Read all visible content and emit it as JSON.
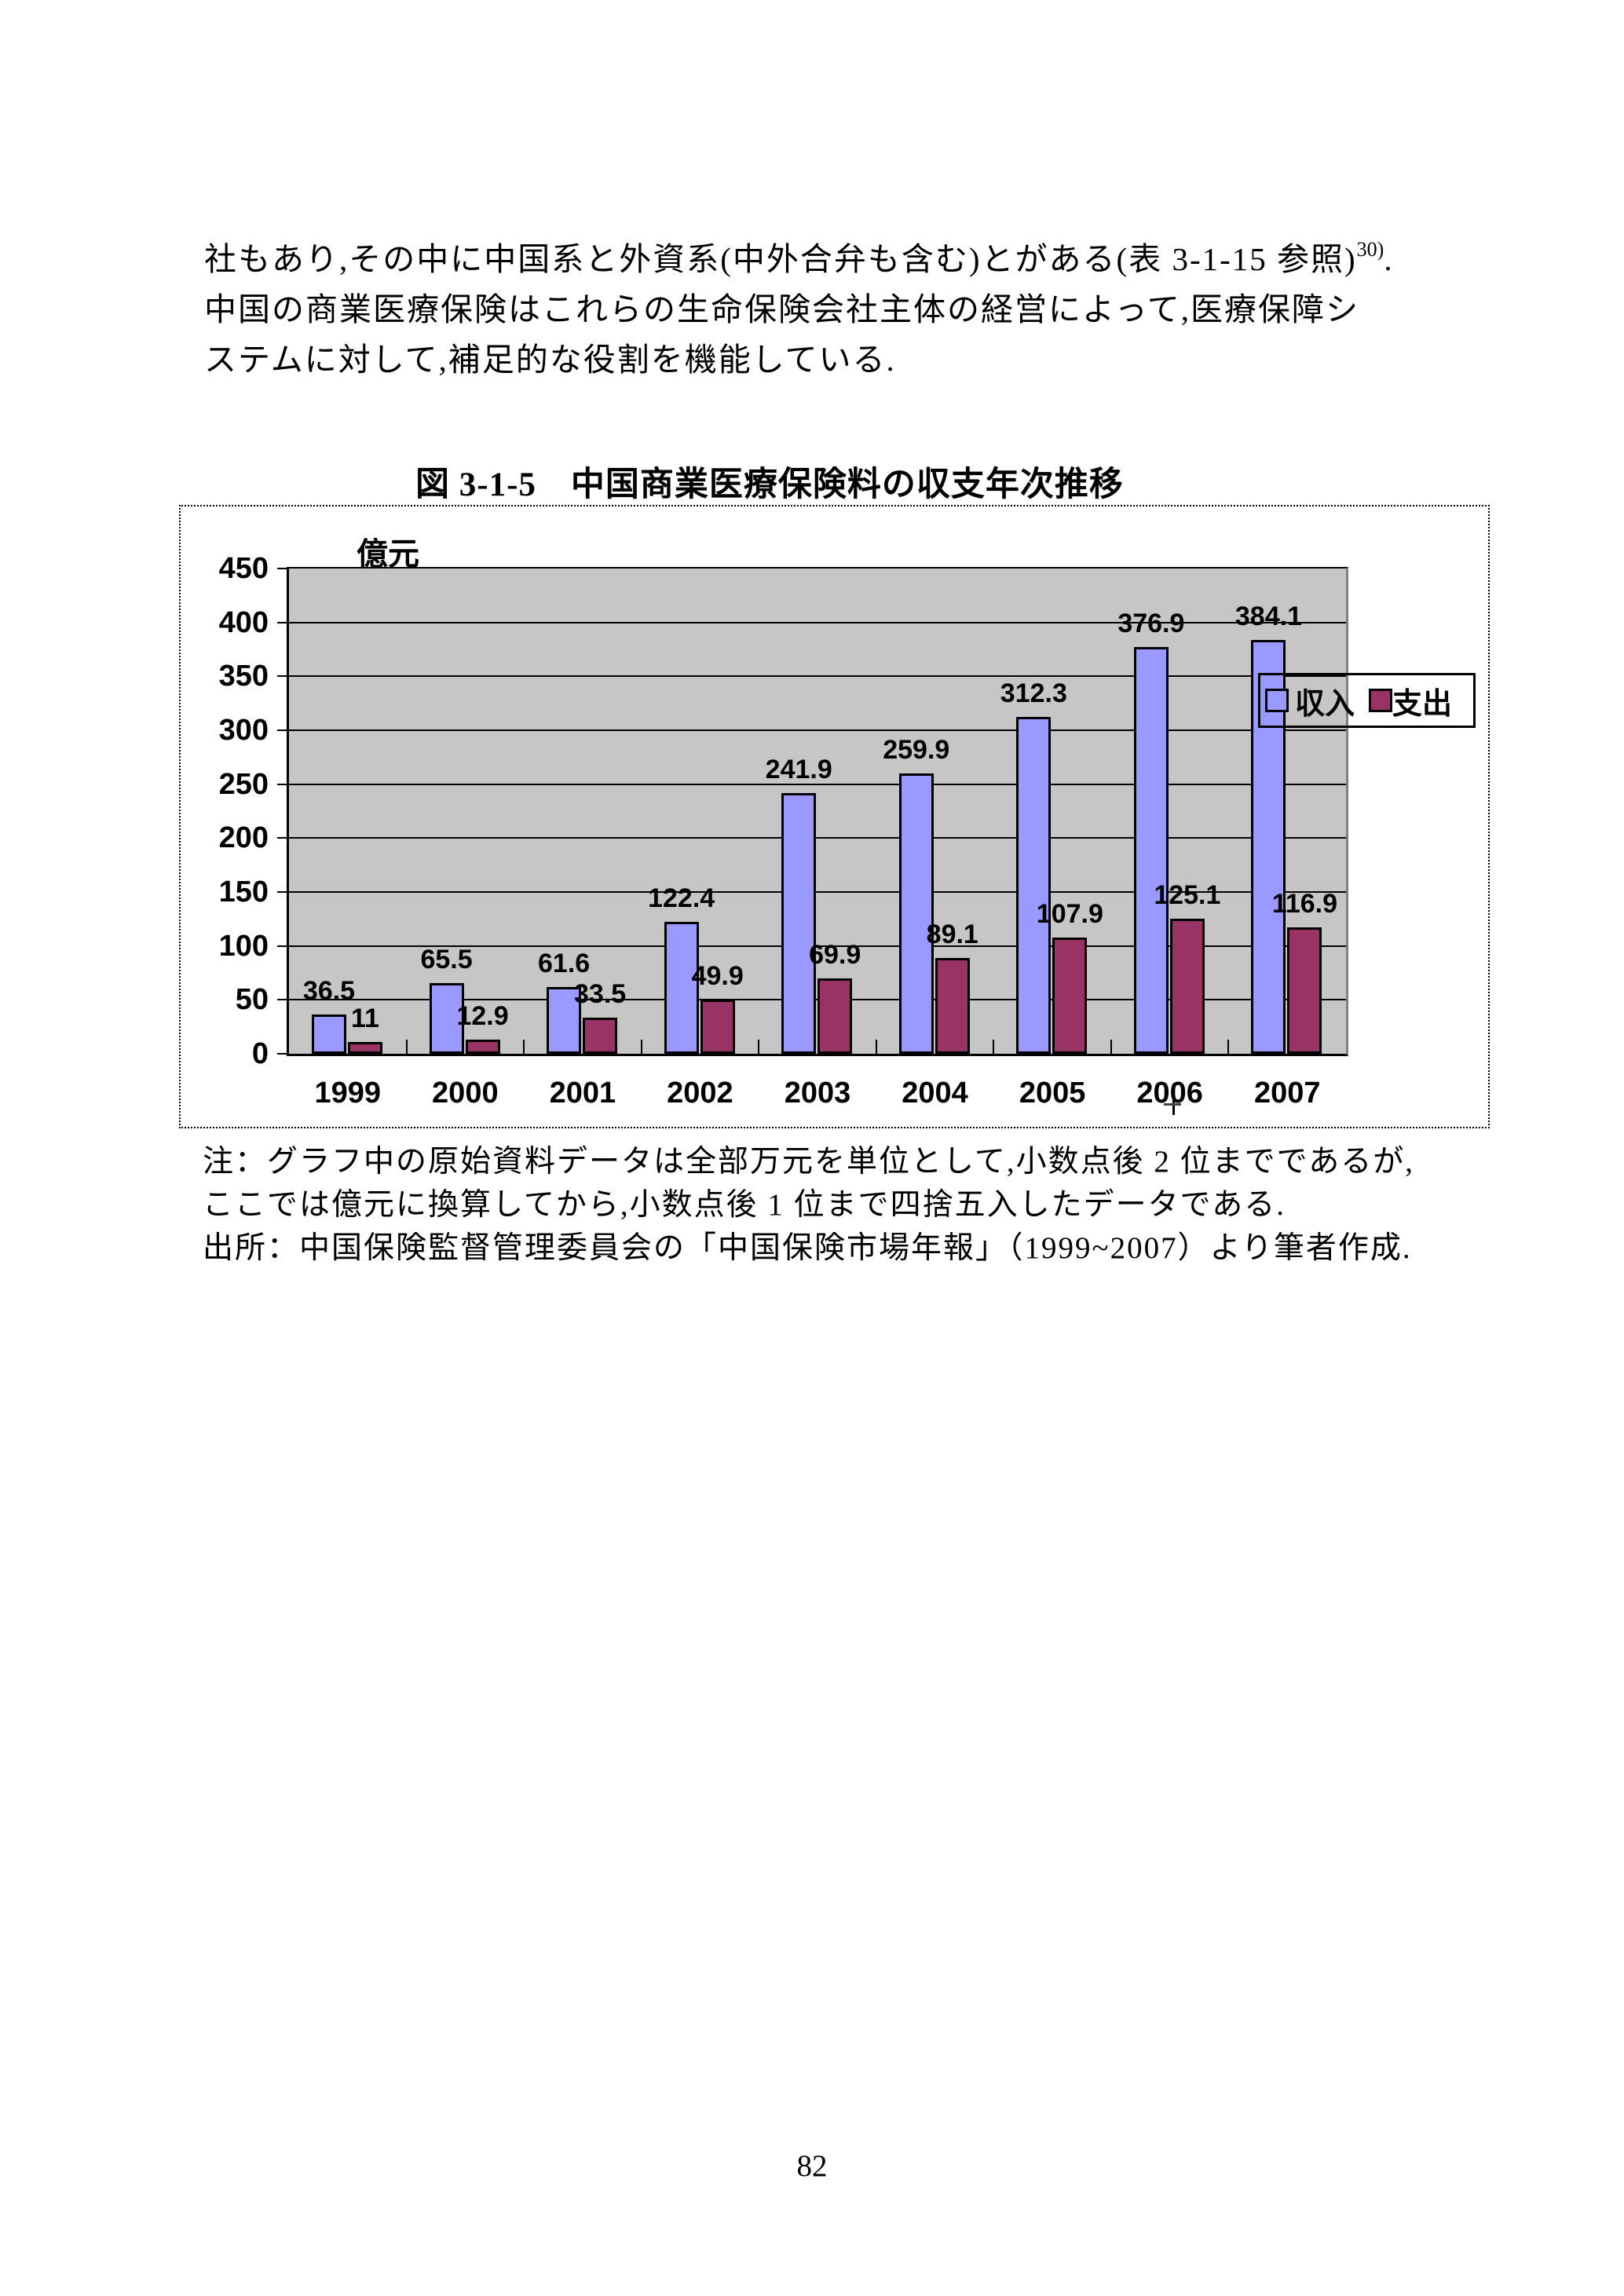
{
  "paragraph": {
    "line1_pre": "社もあり,その中に中国系と外資系(中外合弁も含む)とがある(表 3-1-15 参照)",
    "line1_sup": "30)",
    "line1_post": ".",
    "line2": "中国の商業医療保険はこれらの生命保険会社主体の経営によって,医療保障シ",
    "line3": "ステムに対して,補足的な役割を機能している."
  },
  "figure": {
    "title": "図 3-1-5　中国商業医療保険料の収支年次推移",
    "axis_unit": "億元"
  },
  "legend": {
    "income_label": "収入",
    "expense_label": "支出"
  },
  "colors": {
    "income": "#9999FF",
    "expense": "#993366",
    "plot_background": "#C6C6C6",
    "plot_right_edge": "#808080"
  },
  "chart_data": {
    "type": "bar",
    "title": "図 3-1-5　中国商業医療保険料の収支年次推移",
    "ylabel": "億元",
    "xlabel": "",
    "ylim": [
      0,
      450
    ],
    "ytick_step": 50,
    "yticks": [
      "450",
      "400",
      "350",
      "300",
      "250",
      "200",
      "150",
      "100",
      "50",
      "0"
    ],
    "grid": true,
    "legend_position": "middle-right-overlapping-plot",
    "categories": [
      "1999",
      "2000",
      "2001",
      "2002",
      "2003",
      "2004",
      "2005",
      "2006",
      "2007"
    ],
    "series": [
      {
        "name": "収入",
        "color": "#9999FF",
        "values": [
          36.5,
          65.5,
          61.6,
          122.4,
          241.9,
          259.9,
          312.3,
          376.9,
          384.1
        ],
        "labels": [
          "36.5",
          "65.5",
          "61.6",
          "122.4",
          "241.9",
          "259.9",
          "312.3",
          "376.9",
          "384.1"
        ]
      },
      {
        "name": "支出",
        "color": "#993366",
        "values": [
          11,
          12.9,
          33.5,
          49.9,
          69.9,
          89.1,
          107.9,
          125.1,
          116.9
        ],
        "labels": [
          "11",
          "12.9",
          "33.5",
          "49.9",
          "69.9",
          "89.1",
          "107.9",
          "125.1",
          "116.9"
        ]
      }
    ]
  },
  "notes": {
    "line1": "注：グラフ中の原始資料データは全部万元を単位として,小数点後 2 位までであるが,",
    "line2": "ここでは億元に換算してから,小数点後 1 位まで四捨五入したデータである.",
    "line3": "出所：中国保険監督管理委員会の「中国保険市場年報」（1999~2007）より筆者作成."
  },
  "page": {
    "number": "82"
  }
}
